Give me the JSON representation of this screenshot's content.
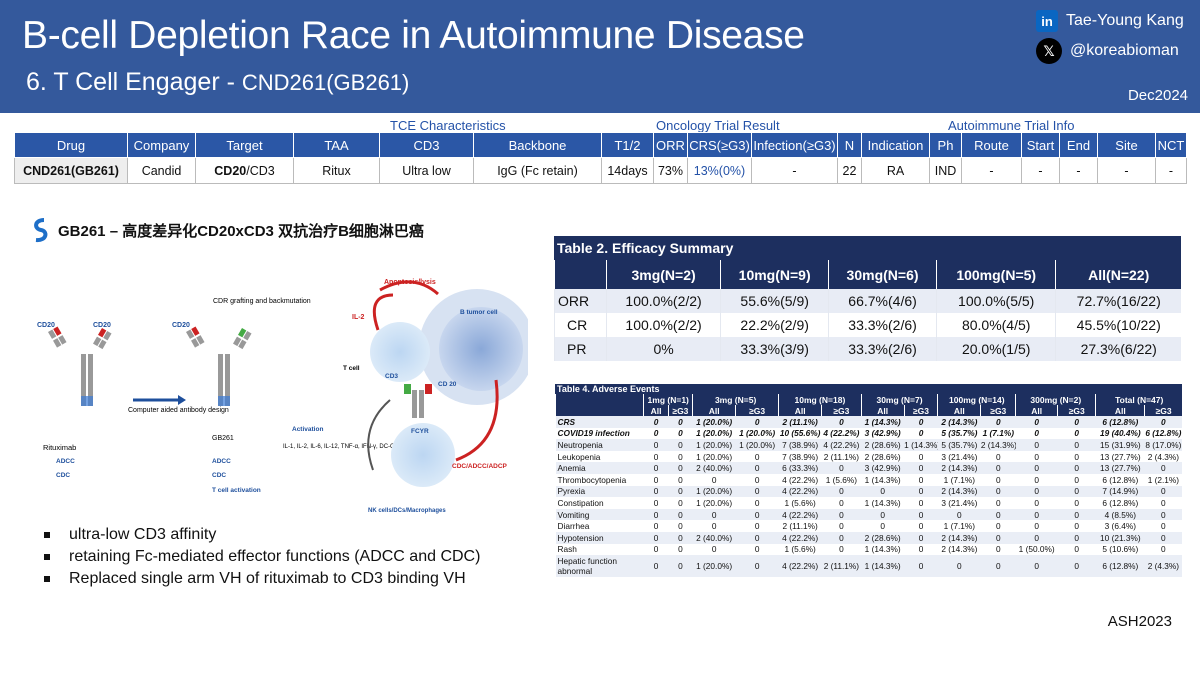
{
  "header": {
    "title": "B-cell Depletion Race in Autoimmune Disease",
    "subtitle_main": "6. T Cell Engager - ",
    "subtitle_drug": "CND261(GB261)",
    "author": "Tae-Young Kang",
    "handle": "@koreabioman",
    "date": "Dec2024",
    "icons": [
      "linkedin-icon",
      "x-icon"
    ]
  },
  "top_table": {
    "categories": [
      "TCE Characteristics",
      "Oncology Trial Result",
      "Autoimmune Trial Info"
    ],
    "columns": [
      "Drug",
      "Company",
      "Target",
      "TAA",
      "CD3",
      "Backbone",
      "T1/2",
      "ORR",
      "CRS(≥G3)",
      "Infection(≥G3)",
      "N",
      "Indication",
      "Ph",
      "Route",
      "Start",
      "End",
      "Site",
      "NCT"
    ],
    "row": {
      "drug": "CND261(GB261)",
      "company": "Candid",
      "target_bold": "CD20",
      "target_rest": "/CD3",
      "taa": "Ritux",
      "cd3": "Ultra low",
      "backbone": "IgG (Fc retain)",
      "t_half": "14days",
      "orr": "73%",
      "crs": "13%(0%)",
      "infection": "-",
      "n": "22",
      "indication": "RA",
      "ph": "IND",
      "route": "-",
      "start": "-",
      "end": "-",
      "site": "-",
      "nct": "-"
    }
  },
  "figure": {
    "heading": "GB261 – 高度差异化CD20xCD3 双抗治疗B细胞淋巴癌",
    "labels": {
      "cd20": "CD20",
      "rituximab": "Rituximab",
      "gb261": "GB261",
      "cdr": "CDR grafting and backmutation",
      "computer": "Computer aided antibody design",
      "adcc": "ADCC",
      "cdc": "CDC",
      "tcell_act": "T cell activation",
      "activation": "Activation",
      "cytokines": "IL-1, IL-2, IL-6, IL-12, TNF-α, IFN-γ, DC-CK1, GM-CSF",
      "apoptosis": "Apoptosis/lysis",
      "btumor": "B tumor cell",
      "il2": "IL-2",
      "tcell": "T cell",
      "cd3": "CD3",
      "cd20b": "CD 20",
      "fcyr": "FCYR",
      "cdc_adcc": "CDC/ADCC/ADCP",
      "nk": "NK cells/DCs/Macrophages"
    }
  },
  "bullets": [
    "ultra-low CD3 affinity",
    "retaining Fc-mediated effector functions (ADCC and CDC)",
    "Replaced single arm VH of rituximab to CD3 binding VH"
  ],
  "table2": {
    "caption": "Table 2. Efficacy Summary",
    "columns": [
      "",
      "3mg(N=2)",
      "10mg(N=9)",
      "30mg(N=6)",
      "100mg(N=5)",
      "All(N=22)"
    ],
    "rows": [
      [
        "ORR",
        "100.0%(2/2)",
        "55.6%(5/9)",
        "66.7%(4/6)",
        "100.0%(5/5)",
        "72.7%(16/22)"
      ],
      [
        "CR",
        "100.0%(2/2)",
        "22.2%(2/9)",
        "33.3%(2/6)",
        "80.0%(4/5)",
        "45.5%(10/22)"
      ],
      [
        "PR",
        "0%",
        "33.3%(3/9)",
        "33.3%(2/6)",
        "20.0%(1/5)",
        "27.3%(6/22)"
      ]
    ]
  },
  "table4": {
    "caption": "Table 4. Adverse Events",
    "groups": [
      "1mg (N=1)",
      "3mg (N=5)",
      "10mg (N=18)",
      "30mg (N=7)",
      "100mg (N=14)",
      "300mg (N=2)",
      "Total (N=47)"
    ],
    "subheaders": [
      "All",
      "≥G3"
    ],
    "rows": [
      [
        "CRS",
        "0",
        "0",
        "1 (20.0%)",
        "0",
        "2 (11.1%)",
        "0",
        "1 (14.3%)",
        "0",
        "2 (14.3%)",
        "0",
        "0",
        "0",
        "6 (12.8%)",
        "0"
      ],
      [
        "COVID19 infection",
        "0",
        "0",
        "1 (20.0%)",
        "1 (20.0%)",
        "10 (55.6%)",
        "4 (22.2%)",
        "3 (42.9%)",
        "0",
        "5 (35.7%)",
        "1 (7.1%)",
        "0",
        "0",
        "19 (40.4%)",
        "6 (12.8%)"
      ],
      [
        "Neutropenia",
        "0",
        "0",
        "1 (20.0%)",
        "1 (20.0%)",
        "7 (38.9%)",
        "4 (22.2%)",
        "2 (28.6%)",
        "1 (14.3%)",
        "5 (35.7%)",
        "2 (14.3%)",
        "0",
        "0",
        "15 (31.9%)",
        "8 (17.0%)"
      ],
      [
        "Leukopenia",
        "0",
        "0",
        "1 (20.0%)",
        "0",
        "7 (38.9%)",
        "2 (11.1%)",
        "2 (28.6%)",
        "0",
        "3 (21.4%)",
        "0",
        "0",
        "0",
        "13 (27.7%)",
        "2 (4.3%)"
      ],
      [
        "Anemia",
        "0",
        "0",
        "2 (40.0%)",
        "0",
        "6 (33.3%)",
        "0",
        "3 (42.9%)",
        "0",
        "2 (14.3%)",
        "0",
        "0",
        "0",
        "13 (27.7%)",
        "0"
      ],
      [
        "Thrombocytopenia",
        "0",
        "0",
        "0",
        "0",
        "4 (22.2%)",
        "1 (5.6%)",
        "1 (14.3%)",
        "0",
        "1 (7.1%)",
        "0",
        "0",
        "0",
        "6 (12.8%)",
        "1 (2.1%)"
      ],
      [
        "Pyrexia",
        "0",
        "0",
        "1 (20.0%)",
        "0",
        "4 (22.2%)",
        "0",
        "0",
        "0",
        "2 (14.3%)",
        "0",
        "0",
        "0",
        "7 (14.9%)",
        "0"
      ],
      [
        "Constipation",
        "0",
        "0",
        "1 (20.0%)",
        "0",
        "1 (5.6%)",
        "0",
        "1 (14.3%)",
        "0",
        "3 (21.4%)",
        "0",
        "0",
        "0",
        "6 (12.8%)",
        "0"
      ],
      [
        "Vomiting",
        "0",
        "0",
        "0",
        "0",
        "4 (22.2%)",
        "0",
        "0",
        "0",
        "0",
        "0",
        "0",
        "0",
        "4 (8.5%)",
        "0"
      ],
      [
        "Diarrhea",
        "0",
        "0",
        "0",
        "0",
        "2 (11.1%)",
        "0",
        "0",
        "0",
        "1 (7.1%)",
        "0",
        "0",
        "0",
        "3 (6.4%)",
        "0"
      ],
      [
        "Hypotension",
        "0",
        "0",
        "2 (40.0%)",
        "0",
        "4 (22.2%)",
        "0",
        "2 (28.6%)",
        "0",
        "2 (14.3%)",
        "0",
        "0",
        "0",
        "10 (21.3%)",
        "0"
      ],
      [
        "Rash",
        "0",
        "0",
        "0",
        "0",
        "1 (5.6%)",
        "0",
        "1 (14.3%)",
        "0",
        "2 (14.3%)",
        "0",
        "1 (50.0%)",
        "0",
        "5 (10.6%)",
        "0"
      ],
      [
        "Hepatic function abnormal",
        "0",
        "0",
        "1 (20.0%)",
        "0",
        "4 (22.2%)",
        "2 (11.1%)",
        "1 (14.3%)",
        "0",
        "0",
        "0",
        "0",
        "0",
        "6 (12.8%)",
        "2 (4.3%)"
      ]
    ]
  },
  "source": "ASH2023",
  "colors": {
    "header": "#34599c",
    "table_header": "#2b57a6",
    "dark_navy": "#1d2f5f",
    "accent_red": "#d0202a"
  }
}
